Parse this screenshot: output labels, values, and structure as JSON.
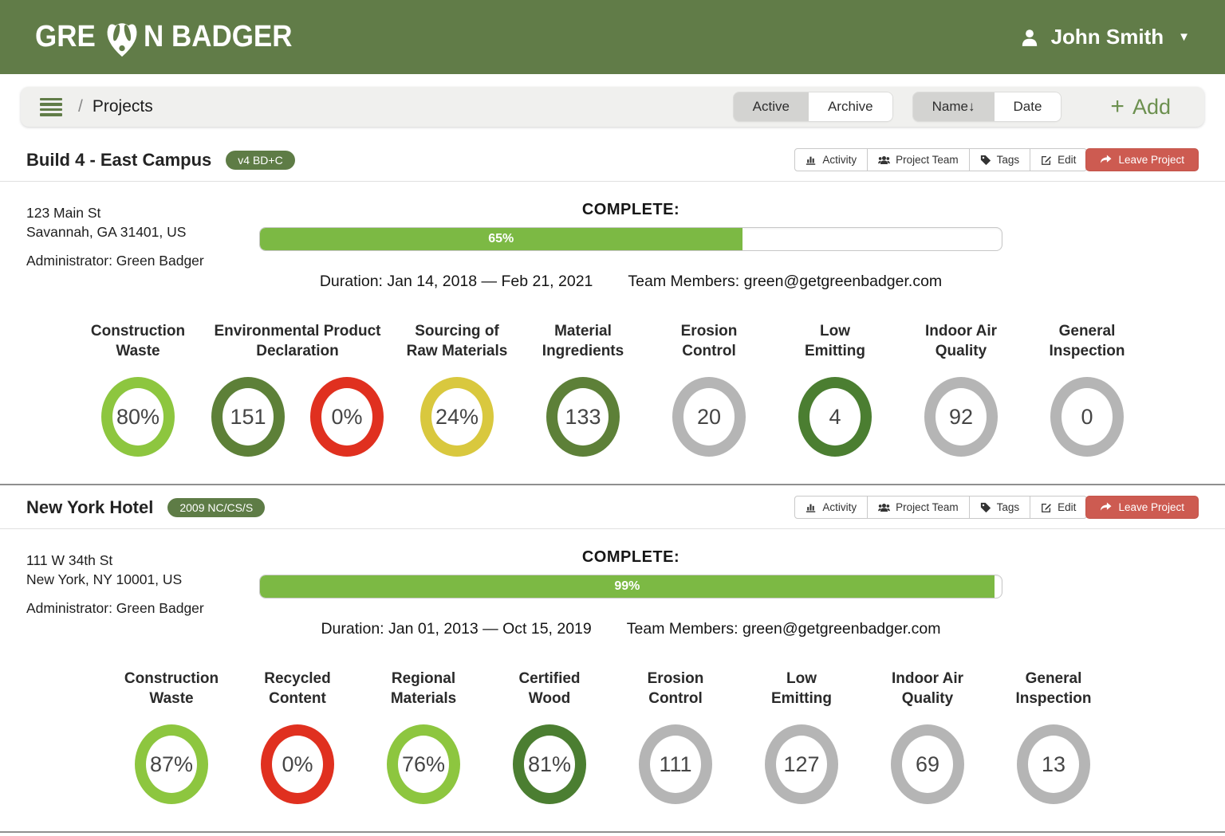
{
  "header": {
    "logo_pre": "GRE",
    "logo_post": "N BADGER",
    "user_name": "John Smith",
    "caret": "▼"
  },
  "toolbar": {
    "slash": "/",
    "breadcrumb": "Projects",
    "filters": {
      "active": "Active",
      "archive": "Archive"
    },
    "sort": {
      "name": "Name↓",
      "date": "Date"
    },
    "add_plus": "+",
    "add_label": "Add"
  },
  "actions": {
    "activity": "Activity",
    "team": "Project Team",
    "tags": "Tags",
    "edit": "Edit",
    "leave": "Leave Project"
  },
  "theme": {
    "header_green": "#617c48",
    "badge_green": "#5e7c46",
    "progress_green": "#7cb944",
    "leave_red": "#cd5b51",
    "add_green": "#6c904f"
  },
  "ring_colors": {
    "light-green": "#8dc63f",
    "olive": "#5d8038",
    "forest": "#4b7e31",
    "red": "#e0301f",
    "yellow": "#d9c83e",
    "gray": "#b5b5b5"
  },
  "projects": [
    {
      "title": "Build 4 - East Campus",
      "badge": "v4 BD+C",
      "address1": "123 Main St",
      "address2": "Savannah, GA 31401, US",
      "admin": "Administrator: Green Badger",
      "complete_label": "COMPLETE:",
      "progress_pct": 65,
      "progress_text": "65%",
      "duration": "Duration: Jan 14, 2018 — Feb 21, 2021",
      "team": "Team Members: green@getgreenbadger.com",
      "metrics": [
        {
          "label": [
            "Construction",
            "Waste"
          ],
          "circles": [
            {
              "value": "80%",
              "color": "light-green"
            }
          ]
        },
        {
          "label": [
            "Environmental Product",
            "Declaration"
          ],
          "circles": [
            {
              "value": "151",
              "color": "olive"
            },
            {
              "value": "0%",
              "color": "red"
            }
          ]
        },
        {
          "label": [
            "Sourcing of",
            "Raw Materials"
          ],
          "circles": [
            {
              "value": "24%",
              "color": "yellow"
            }
          ]
        },
        {
          "label": [
            "Material",
            "Ingredients"
          ],
          "circles": [
            {
              "value": "133",
              "color": "olive"
            }
          ]
        },
        {
          "label": [
            "Erosion",
            "Control"
          ],
          "circles": [
            {
              "value": "20",
              "color": "gray"
            }
          ]
        },
        {
          "label": [
            "Low",
            "Emitting"
          ],
          "circles": [
            {
              "value": "4",
              "color": "forest"
            }
          ]
        },
        {
          "label": [
            "Indoor Air",
            "Quality"
          ],
          "circles": [
            {
              "value": "92",
              "color": "gray"
            }
          ]
        },
        {
          "label": [
            "General",
            "Inspection"
          ],
          "circles": [
            {
              "value": "0",
              "color": "gray"
            }
          ]
        }
      ]
    },
    {
      "title": "New York Hotel",
      "badge": "2009 NC/CS/S",
      "address1": "111 W 34th St",
      "address2": "New York, NY 10001, US",
      "admin": "Administrator: Green Badger",
      "complete_label": "COMPLETE:",
      "progress_pct": 99,
      "progress_text": "99%",
      "duration": "Duration: Jan 01, 2013 — Oct 15, 2019",
      "team": "Team Members: green@getgreenbadger.com",
      "metrics": [
        {
          "label": [
            "Construction",
            "Waste"
          ],
          "circles": [
            {
              "value": "87%",
              "color": "light-green"
            }
          ]
        },
        {
          "label": [
            "Recycled",
            "Content"
          ],
          "circles": [
            {
              "value": "0%",
              "color": "red"
            }
          ]
        },
        {
          "label": [
            "Regional",
            "Materials"
          ],
          "circles": [
            {
              "value": "76%",
              "color": "light-green"
            }
          ]
        },
        {
          "label": [
            "Certified",
            "Wood"
          ],
          "circles": [
            {
              "value": "81%",
              "color": "forest"
            }
          ]
        },
        {
          "label": [
            "Erosion",
            "Control"
          ],
          "circles": [
            {
              "value": "111",
              "color": "gray"
            }
          ]
        },
        {
          "label": [
            "Low",
            "Emitting"
          ],
          "circles": [
            {
              "value": "127",
              "color": "gray"
            }
          ]
        },
        {
          "label": [
            "Indoor Air",
            "Quality"
          ],
          "circles": [
            {
              "value": "69",
              "color": "gray"
            }
          ]
        },
        {
          "label": [
            "General",
            "Inspection"
          ],
          "circles": [
            {
              "value": "13",
              "color": "gray"
            }
          ]
        }
      ]
    }
  ]
}
